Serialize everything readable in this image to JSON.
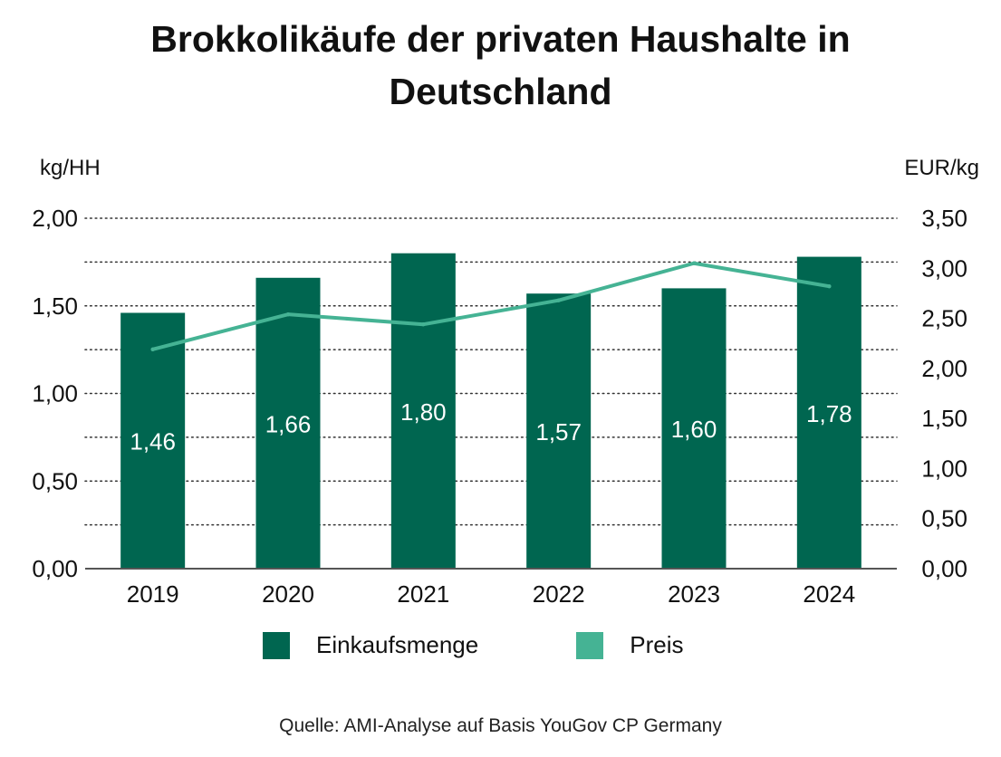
{
  "title_lines": [
    "Brokkolikäufe der privaten Haushalte in",
    "Deutschland"
  ],
  "source": "Quelle: AMI-Analyse auf Basis YouGov CP Germany",
  "colors": {
    "bar": "#006650",
    "line": "#45b394",
    "grid": "#333333",
    "axis": "#555555",
    "bar_label": "#ffffff"
  },
  "chart_data": {
    "type": "bar",
    "title": "Brokkolikäufe der privaten Haushalte in Deutschland",
    "categories": [
      "2019",
      "2020",
      "2021",
      "2022",
      "2023",
      "2024"
    ],
    "series": [
      {
        "name": "Einkaufsmenge",
        "type": "bar",
        "axis": "left",
        "values": [
          1.46,
          1.66,
          1.8,
          1.57,
          1.6,
          1.78
        ],
        "labels": [
          "1,46",
          "1,66",
          "1,80",
          "1,57",
          "1,60",
          "1,78"
        ]
      },
      {
        "name": "Preis",
        "type": "line",
        "axis": "right",
        "values": [
          2.19,
          2.54,
          2.44,
          2.68,
          3.05,
          2.82
        ]
      }
    ],
    "ylabel": "kg/HH",
    "y2label": "EUR/kg",
    "ylim": [
      0,
      2.0
    ],
    "y2lim": [
      0,
      3.5
    ],
    "yticks": [
      "0,00",
      "0,50",
      "1,00",
      "1,50",
      "2,00"
    ],
    "y2ticks": [
      "0,00",
      "0,50",
      "1,00",
      "1,50",
      "2,00",
      "2,50",
      "3,00",
      "3,50"
    ],
    "grid": "dotted horizontal",
    "legend": "bottom"
  }
}
